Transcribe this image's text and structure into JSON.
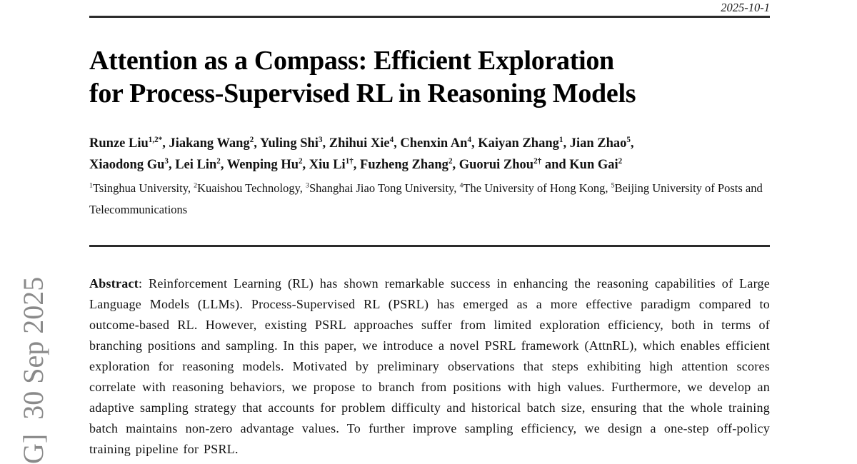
{
  "header": {
    "date": "2025-10-1"
  },
  "title": {
    "lines": [
      "Attention as a Compass: Efficient Exploration",
      "for Process-Supervised RL in Reasoning Models"
    ]
  },
  "authors": {
    "lines": [
      [
        {
          "t": "Runze Liu"
        },
        {
          "s": "1,2*"
        },
        {
          "t": ", Jiakang Wang"
        },
        {
          "s": "2"
        },
        {
          "t": ", Yuling Shi"
        },
        {
          "s": "3"
        },
        {
          "t": ", Zhihui Xie"
        },
        {
          "s": "4"
        },
        {
          "t": ", Chenxin An"
        },
        {
          "s": "4"
        },
        {
          "t": ", Kaiyan Zhang"
        },
        {
          "s": "1"
        },
        {
          "t": ", Jian Zhao"
        },
        {
          "s": "5"
        },
        {
          "t": ","
        }
      ],
      [
        {
          "t": "Xiaodong Gu"
        },
        {
          "s": "3"
        },
        {
          "t": ", Lei Lin"
        },
        {
          "s": "2"
        },
        {
          "t": ", Wenping Hu"
        },
        {
          "s": "2"
        },
        {
          "t": ", Xiu Li"
        },
        {
          "s": "1†"
        },
        {
          "t": ", Fuzheng Zhang"
        },
        {
          "s": "2"
        },
        {
          "t": ", Guorui Zhou"
        },
        {
          "s": "2†"
        },
        {
          "t": " and Kun Gai"
        },
        {
          "s": "2"
        }
      ]
    ]
  },
  "affiliations": {
    "segments": [
      {
        "s": "1"
      },
      {
        "t": "Tsinghua University, "
      },
      {
        "s": "2"
      },
      {
        "t": "Kuaishou Technology, "
      },
      {
        "s": "3"
      },
      {
        "t": "Shanghai Jiao Tong University, "
      },
      {
        "s": "4"
      },
      {
        "t": "The University of Hong Kong, "
      },
      {
        "s": "5"
      },
      {
        "t": "Beijing University of Posts and Telecommunications"
      }
    ]
  },
  "abstract": {
    "segments": [
      {
        "b": "Abstract"
      },
      {
        "t": ": Reinforcement Learning (RL) has shown remarkable success in enhancing the reasoning capabilities of Large Language Models (LLMs). Process-Supervised RL (PSRL) has emerged as a more effective paradigm compared to outcome-based RL. However, existing PSRL approaches suffer from limited exploration efficiency, both in terms of branching positions and sampling. In this paper, we introduce a novel PSRL framework (AttnRL), which enables efficient exploration for reasoning models. Motivated by preliminary observations that steps exhibiting high attention scores correlate with reasoning behaviors, we propose to branch from positions with high values. Furthermore, we develop an adaptive sampling strategy that accounts for problem difficulty and historical batch size, ensuring that the whole training batch maintains non-zero advantage values. To further improve sampling efficiency, we design a one-step off-policy training pipeline for PSRL."
      }
    ]
  },
  "watermark": {
    "text": "G]  30 Sep 2025"
  },
  "colors": {
    "background": "#ffffff",
    "text": "#121212",
    "rule": "#2b2b2b",
    "watermark": "#8a8a8a"
  }
}
